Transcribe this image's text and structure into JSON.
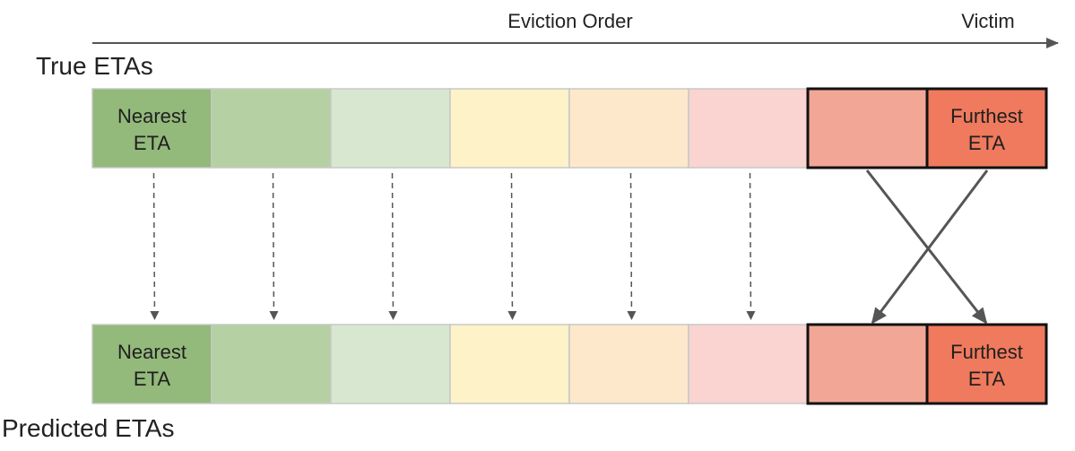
{
  "header": {
    "axis_label": "Eviction Order",
    "victim_label": "Victim"
  },
  "rows": {
    "true_title": "True ETAs",
    "predicted_title": "Predicted ETAs"
  },
  "cells": {
    "first_line1": "Nearest",
    "first_line2": "ETA",
    "last_line1": "Furthest",
    "last_line2": "ETA"
  },
  "colors": [
    "#93b97b",
    "#b5d1a4",
    "#d8e8d0",
    "#fdf2c8",
    "#fde8cc",
    "#f9d4d0",
    "#f2a796",
    "#ef7a5d"
  ],
  "legend_colors": {
    "border": "#c8c8c8",
    "victim_border": "#111111",
    "arrow": "#555555"
  }
}
